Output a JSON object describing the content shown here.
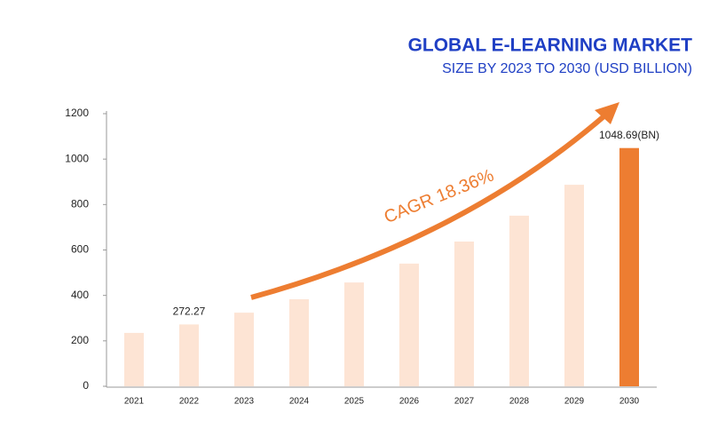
{
  "chart_data": {
    "type": "bar",
    "title": "GLOBAL E-LEARNING MARKET",
    "subtitle": "SIZE BY 2023 TO 2030 (USD BILLION)",
    "annotation": "CAGR 18.36%",
    "categories": [
      "2021",
      "2022",
      "2023",
      "2024",
      "2025",
      "2026",
      "2027",
      "2028",
      "2029",
      "2030"
    ],
    "values": [
      235,
      272.27,
      324,
      383,
      457,
      540,
      637,
      751,
      887,
      1048.69
    ],
    "value_labels": [
      null,
      "272.27",
      null,
      null,
      null,
      null,
      null,
      null,
      null,
      "1048.69(BN)"
    ],
    "colors": [
      "#fde4d4",
      "#fde4d4",
      "#fde4d4",
      "#fde4d4",
      "#fde4d4",
      "#fde4d4",
      "#fde4d4",
      "#fde4d4",
      "#fde4d4",
      "#ed7d31"
    ],
    "ylim": [
      0,
      1200
    ],
    "yticks": [
      0,
      200,
      400,
      600,
      800,
      1000,
      1200
    ],
    "grid": false
  }
}
